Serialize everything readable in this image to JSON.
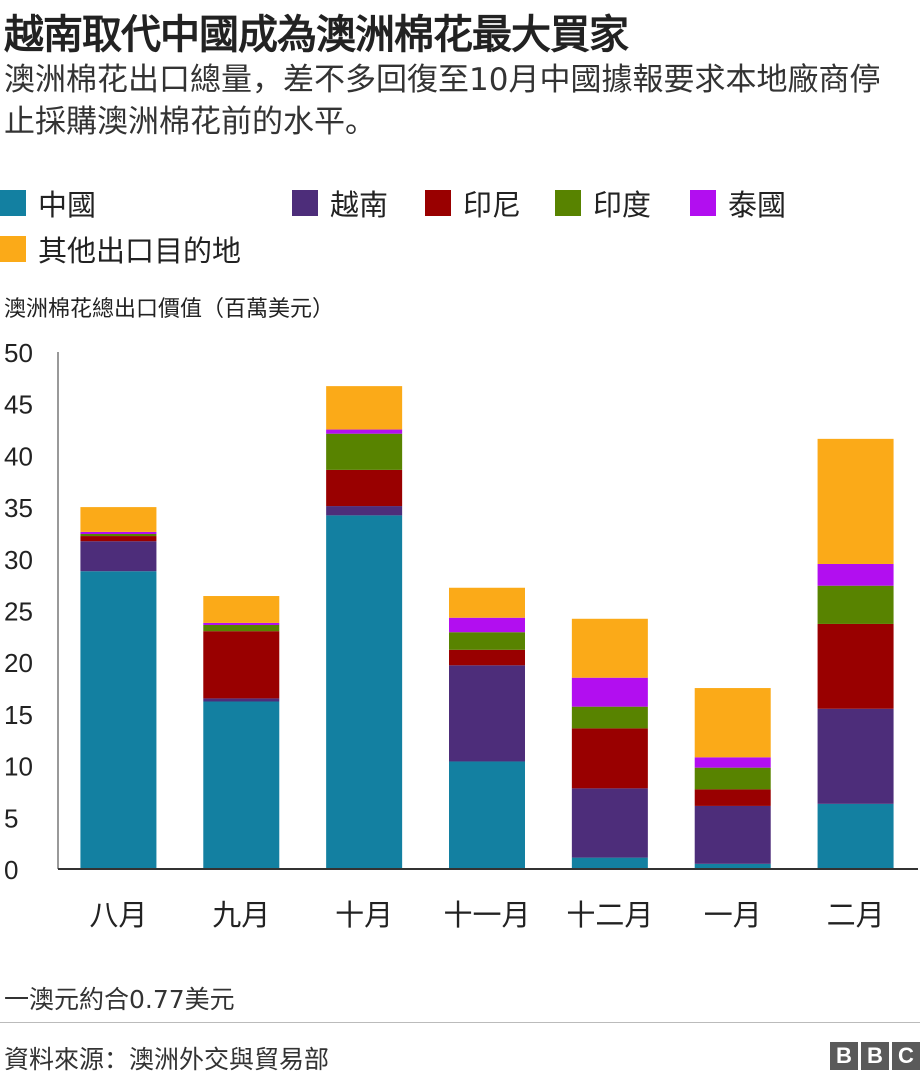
{
  "header": {
    "title": "越南取代中國成為澳洲棉花最大買家",
    "subtitle": "澳洲棉花出口總量，差不多回復至10月中國據報要求本地廠商停止採購澳洲棉花前的水平。"
  },
  "footer": {
    "note": "一澳元約合0.77美元",
    "source": "資料來源：澳洲外交與貿易部",
    "logo": [
      "B",
      "B",
      "C"
    ]
  },
  "colors": {
    "中國": "#1380a1",
    "越南": "#4d2d7a",
    "印尼": "#990000",
    "印度": "#588300",
    "泰國": "#b20ef0",
    "其他出口目的地": "#fbaa18"
  },
  "chart_data": {
    "type": "bar",
    "stacked": true,
    "ylabel": "澳洲棉花總出口價值（百萬美元）",
    "ylim": [
      0,
      50
    ],
    "yticks": [
      0,
      5,
      10,
      15,
      20,
      25,
      30,
      35,
      40,
      45,
      50
    ],
    "categories": [
      "八月",
      "九月",
      "十月",
      "十一月",
      "十二月",
      "一月",
      "二月"
    ],
    "series": [
      {
        "name": "中國",
        "values": [
          28.8,
          16.2,
          34.2,
          10.4,
          1.1,
          0.5,
          6.3
        ]
      },
      {
        "name": "越南",
        "values": [
          2.9,
          0.3,
          0.9,
          9.3,
          6.7,
          5.6,
          9.2
        ]
      },
      {
        "name": "印尼",
        "values": [
          0.5,
          6.5,
          3.5,
          1.5,
          5.8,
          1.6,
          8.2
        ]
      },
      {
        "name": "印度",
        "values": [
          0.2,
          0.6,
          3.5,
          1.7,
          2.1,
          2.1,
          3.7
        ]
      },
      {
        "name": "泰國",
        "values": [
          0.2,
          0.2,
          0.4,
          1.4,
          2.8,
          1.0,
          2.1
        ]
      },
      {
        "name": "其他出口目的地",
        "values": [
          2.4,
          2.6,
          4.2,
          2.9,
          5.7,
          6.7,
          12.1
        ]
      }
    ],
    "legend_position": "top-left",
    "grid": false
  }
}
